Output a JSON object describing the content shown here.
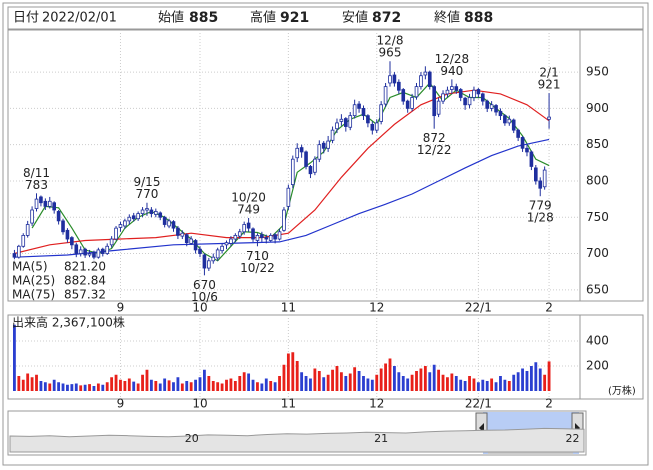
{
  "chart_data": {
    "type": "candlestick",
    "header": {
      "date_label": "日付",
      "date": "2022/02/01",
      "open_label": "始値",
      "open": 885,
      "high_label": "高値",
      "high": 921,
      "low_label": "安値",
      "low": 872,
      "close_label": "終値",
      "close": 888,
      "high_color": "#e00000",
      "low_color": "#1a8a1a"
    },
    "xlim": [
      -1,
      128
    ],
    "xticks": [
      {
        "value": 24,
        "label": "9"
      },
      {
        "value": 42,
        "label": "10"
      },
      {
        "value": 62,
        "label": "11"
      },
      {
        "value": 82,
        "label": "12"
      },
      {
        "value": 105,
        "label": "22/1"
      },
      {
        "value": 121,
        "label": "2"
      }
    ],
    "ylim": [
      636,
      1008
    ],
    "yticks": [
      650,
      700,
      750,
      800,
      850,
      900,
      950
    ],
    "grid": true,
    "up_color": "#ffffff",
    "down_color": "#1f2f9e",
    "candle_edge": "#1f2f9e",
    "candles": [
      [
        700,
        705,
        690,
        695
      ],
      [
        695,
        712,
        693,
        710
      ],
      [
        710,
        728,
        708,
        725
      ],
      [
        725,
        745,
        722,
        740
      ],
      [
        742,
        765,
        738,
        760
      ],
      [
        762,
        783,
        758,
        775
      ],
      [
        778,
        780,
        765,
        770
      ],
      [
        772,
        776,
        760,
        765
      ],
      [
        765,
        778,
        762,
        772
      ],
      [
        770,
        772,
        755,
        760
      ],
      [
        758,
        760,
        740,
        745
      ],
      [
        745,
        748,
        726,
        730
      ],
      [
        732,
        735,
        715,
        720
      ],
      [
        722,
        724,
        706,
        712
      ],
      [
        712,
        715,
        695,
        700
      ],
      [
        700,
        710,
        696,
        705
      ],
      [
        706,
        708,
        694,
        698
      ],
      [
        698,
        705,
        695,
        700
      ],
      [
        702,
        704,
        690,
        695
      ],
      [
        695,
        708,
        693,
        705
      ],
      [
        706,
        708,
        696,
        700
      ],
      [
        700,
        714,
        698,
        710
      ],
      [
        712,
        724,
        708,
        720
      ],
      [
        720,
        738,
        718,
        735
      ],
      [
        736,
        744,
        730,
        740
      ],
      [
        738,
        748,
        734,
        745
      ],
      [
        745,
        754,
        740,
        750
      ],
      [
        752,
        756,
        744,
        748
      ],
      [
        748,
        758,
        745,
        755
      ],
      [
        755,
        764,
        750,
        760
      ],
      [
        760,
        770,
        752,
        762
      ],
      [
        760,
        764,
        750,
        755
      ],
      [
        754,
        762,
        750,
        758
      ],
      [
        756,
        758,
        746,
        750
      ],
      [
        750,
        752,
        736,
        740
      ],
      [
        738,
        748,
        735,
        745
      ],
      [
        744,
        746,
        730,
        735
      ],
      [
        735,
        738,
        720,
        725
      ],
      [
        724,
        732,
        720,
        728
      ],
      [
        726,
        728,
        710,
        715
      ],
      [
        714,
        724,
        712,
        720
      ],
      [
        718,
        720,
        700,
        705
      ],
      [
        706,
        710,
        695,
        700
      ],
      [
        698,
        700,
        670,
        680
      ],
      [
        680,
        694,
        676,
        690
      ],
      [
        690,
        700,
        686,
        695
      ],
      [
        694,
        708,
        690,
        705
      ],
      [
        704,
        714,
        700,
        710
      ],
      [
        712,
        718,
        706,
        715
      ],
      [
        714,
        724,
        710,
        720
      ],
      [
        720,
        728,
        716,
        725
      ],
      [
        724,
        734,
        720,
        730
      ],
      [
        730,
        744,
        726,
        740
      ],
      [
        742,
        749,
        730,
        735
      ],
      [
        734,
        736,
        716,
        720
      ],
      [
        718,
        728,
        710,
        725
      ],
      [
        726,
        730,
        716,
        722
      ],
      [
        722,
        726,
        714,
        720
      ],
      [
        718,
        728,
        716,
        725
      ],
      [
        726,
        728,
        714,
        720
      ],
      [
        720,
        734,
        718,
        730
      ],
      [
        732,
        764,
        730,
        760
      ],
      [
        765,
        795,
        760,
        790
      ],
      [
        795,
        835,
        790,
        830
      ],
      [
        832,
        852,
        826,
        845
      ],
      [
        846,
        850,
        832,
        840
      ],
      [
        840,
        842,
        816,
        820
      ],
      [
        820,
        822,
        804,
        810
      ],
      [
        812,
        834,
        808,
        830
      ],
      [
        830,
        856,
        826,
        850
      ],
      [
        852,
        855,
        838,
        845
      ],
      [
        845,
        862,
        840,
        855
      ],
      [
        856,
        875,
        852,
        870
      ],
      [
        872,
        886,
        866,
        880
      ],
      [
        882,
        892,
        876,
        885
      ],
      [
        886,
        888,
        868,
        875
      ],
      [
        874,
        895,
        870,
        890
      ],
      [
        890,
        912,
        886,
        905
      ],
      [
        906,
        910,
        894,
        900
      ],
      [
        900,
        904,
        884,
        890
      ],
      [
        890,
        892,
        874,
        880
      ],
      [
        878,
        882,
        864,
        870
      ],
      [
        870,
        885,
        866,
        880
      ],
      [
        882,
        910,
        878,
        905
      ],
      [
        906,
        935,
        902,
        930
      ],
      [
        935,
        965,
        930,
        945
      ],
      [
        946,
        950,
        930,
        935
      ],
      [
        936,
        940,
        920,
        925
      ],
      [
        926,
        928,
        905,
        910
      ],
      [
        910,
        912,
        894,
        900
      ],
      [
        900,
        920,
        896,
        915
      ],
      [
        916,
        935,
        912,
        930
      ],
      [
        930,
        950,
        926,
        945
      ],
      [
        946,
        958,
        940,
        950
      ],
      [
        950,
        952,
        926,
        930
      ],
      [
        930,
        932,
        872,
        890
      ],
      [
        892,
        915,
        888,
        910
      ],
      [
        910,
        925,
        906,
        920
      ],
      [
        920,
        930,
        915,
        925
      ],
      [
        926,
        940,
        920,
        930
      ],
      [
        930,
        934,
        920,
        925
      ],
      [
        926,
        928,
        910,
        915
      ],
      [
        914,
        916,
        898,
        905
      ],
      [
        905,
        920,
        900,
        915
      ],
      [
        915,
        930,
        910,
        925
      ],
      [
        926,
        928,
        914,
        920
      ],
      [
        920,
        922,
        904,
        910
      ],
      [
        910,
        912,
        895,
        900
      ],
      [
        900,
        910,
        896,
        905
      ],
      [
        904,
        906,
        890,
        895
      ],
      [
        896,
        900,
        884,
        890
      ],
      [
        890,
        892,
        876,
        880
      ],
      [
        880,
        890,
        876,
        885
      ],
      [
        884,
        886,
        866,
        870
      ],
      [
        870,
        872,
        855,
        860
      ],
      [
        860,
        862,
        840,
        845
      ],
      [
        845,
        850,
        834,
        840
      ],
      [
        840,
        842,
        815,
        820
      ],
      [
        818,
        822,
        795,
        800
      ],
      [
        800,
        805,
        779,
        790
      ],
      [
        792,
        820,
        788,
        815
      ],
      [
        885,
        921,
        872,
        888
      ]
    ],
    "ma": [
      {
        "name": "MA(5)",
        "color": "#2a8c2a",
        "current": {
          "value": 821.2,
          "label": "821.20"
        },
        "x": [
          4,
          7,
          10,
          13,
          16,
          19,
          22,
          25,
          28,
          31,
          34,
          37,
          40,
          43,
          46,
          49,
          52,
          55,
          58,
          61,
          64,
          67,
          70,
          73,
          76,
          79,
          82,
          85,
          88,
          91,
          94,
          97,
          100,
          103,
          106,
          109,
          112,
          115,
          118,
          121
        ],
        "values": [
          735,
          765,
          763,
          735,
          705,
          700,
          707,
          735,
          750,
          758,
          750,
          735,
          720,
          700,
          690,
          710,
          730,
          729,
          722,
          740,
          812,
          825,
          840,
          870,
          885,
          892,
          878,
          915,
          922,
          915,
          935,
          910,
          925,
          915,
          915,
          900,
          886,
          862,
          830,
          821.2
        ]
      },
      {
        "name": "MA(25)",
        "color": "#e02020",
        "current": 882.84,
        "x": [
          0,
          8,
          16,
          24,
          32,
          40,
          48,
          56,
          62,
          68,
          74,
          80,
          86,
          92,
          98,
          104,
          110,
          116,
          121
        ],
        "values": [
          700,
          712,
          718,
          720,
          722,
          728,
          722,
          722,
          728,
          760,
          805,
          845,
          878,
          905,
          920,
          925,
          920,
          905,
          882.84
        ]
      },
      {
        "name": "MA(75)",
        "color": "#2233cc",
        "current": 857.32,
        "x": [
          0,
          12,
          24,
          36,
          48,
          60,
          66,
          72,
          78,
          84,
          90,
          96,
          102,
          108,
          114,
          121
        ],
        "values": [
          695,
          698,
          705,
          712,
          714,
          716,
          725,
          740,
          755,
          768,
          782,
          800,
          818,
          835,
          848,
          857.32
        ]
      }
    ],
    "annotations": [
      {
        "label": "8/11",
        "value": 783,
        "x": 5,
        "side": "above"
      },
      {
        "label": "9/15",
        "value": 770,
        "x": 30,
        "side": "above"
      },
      {
        "label": "10/6",
        "value": 670,
        "x": 43,
        "side": "below"
      },
      {
        "label": "10/20",
        "value": 749,
        "x": 53,
        "side": "above"
      },
      {
        "label": "10/22",
        "value": 710,
        "x": 55,
        "side": "below"
      },
      {
        "label": "12/8",
        "value": 965,
        "x": 85,
        "side": "above"
      },
      {
        "label": "12/22",
        "value": 872,
        "x": 95,
        "side": "below"
      },
      {
        "label": "12/28",
        "value": 940,
        "x": 99,
        "side": "above"
      },
      {
        "label": "1/28",
        "value": 779,
        "x": 119,
        "side": "below"
      },
      {
        "label": "2/1",
        "value": 921,
        "x": 121,
        "side": "above"
      }
    ],
    "volume": {
      "title": "出来高 2,367,100株",
      "unit": "(万株)",
      "ylim": [
        0,
        560
      ],
      "yticks": [
        200,
        400
      ],
      "up_color": "#e8201a",
      "down_color": "#2b3fd0",
      "values": [
        530,
        120,
        90,
        140,
        110,
        130,
        80,
        70,
        60,
        90,
        70,
        60,
        50,
        55,
        60,
        45,
        50,
        55,
        40,
        60,
        50,
        70,
        110,
        130,
        90,
        80,
        100,
        75,
        60,
        130,
        170,
        90,
        80,
        60,
        100,
        85,
        70,
        110,
        60,
        80,
        70,
        90,
        110,
        170,
        120,
        80,
        70,
        60,
        90,
        100,
        80,
        120,
        150,
        140,
        90,
        70,
        60,
        100,
        80,
        70,
        120,
        210,
        300,
        310,
        240,
        150,
        120,
        100,
        180,
        160,
        110,
        130,
        170,
        200,
        150,
        120,
        140,
        190,
        160,
        120,
        100,
        90,
        130,
        180,
        220,
        260,
        200,
        150,
        120,
        100,
        130,
        160,
        180,
        200,
        150,
        210,
        170,
        130,
        110,
        140,
        120,
        90,
        80,
        120,
        100,
        70,
        90,
        80,
        100,
        70,
        120,
        90,
        80,
        130,
        150,
        180,
        160,
        200,
        230,
        180,
        130,
        236.71
      ]
    },
    "navigator": {
      "xlim": [
        0,
        30
      ],
      "ylim": [
        0,
        100
      ],
      "color": "#999999",
      "xticks": [
        {
          "value": 9.5,
          "label": "20"
        },
        {
          "value": 19.4,
          "label": "21"
        },
        {
          "value": 29.4,
          "label": "22"
        }
      ],
      "values": [
        42,
        41,
        43,
        40,
        42,
        44,
        43,
        41,
        40,
        42,
        45,
        44,
        43,
        46,
        48,
        47,
        49,
        50,
        52,
        51,
        50,
        53,
        55,
        56,
        57,
        58,
        60,
        62,
        61,
        60
      ]
    }
  }
}
